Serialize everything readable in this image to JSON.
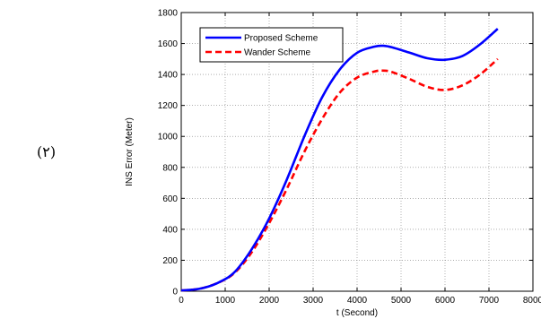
{
  "figure_label": "(٢)",
  "chart_data": {
    "type": "line",
    "xlabel": "t (Second)",
    "ylabel": "INS Error (Meter)",
    "xlim": [
      0,
      8000
    ],
    "ylim": [
      0,
      1800
    ],
    "xticks": [
      0,
      1000,
      2000,
      3000,
      4000,
      5000,
      6000,
      7000,
      8000
    ],
    "yticks": [
      0,
      200,
      400,
      600,
      800,
      1000,
      1200,
      1400,
      1600,
      1800
    ],
    "xtick_labels": [
      "0",
      "1000",
      "2000",
      "3000",
      "4000",
      "5000",
      "6000",
      "7000",
      "8000"
    ],
    "ytick_labels": [
      "0",
      "200",
      "400",
      "600",
      "800",
      "1000",
      "1200",
      "1400",
      "1600",
      "1800"
    ],
    "grid": true,
    "legend_position": "top-left",
    "series": [
      {
        "name": "Proposed Scheme",
        "color": "#0000ff",
        "dash": "solid",
        "x": [
          0,
          400,
          800,
          1200,
          1600,
          2000,
          2400,
          2800,
          3200,
          3600,
          4000,
          4400,
          4600,
          4800,
          5200,
          5600,
          6000,
          6400,
          6800,
          7200
        ],
        "y": [
          5,
          15,
          50,
          120,
          270,
          470,
          720,
          1000,
          1250,
          1430,
          1540,
          1580,
          1585,
          1575,
          1540,
          1505,
          1495,
          1520,
          1595,
          1695
        ]
      },
      {
        "name": "Wander Scheme",
        "color": "#ff0000",
        "dash": "dashed",
        "x": [
          0,
          400,
          800,
          1200,
          1600,
          2000,
          2400,
          2800,
          3200,
          3600,
          4000,
          4400,
          4600,
          4800,
          5200,
          5600,
          6000,
          6400,
          6800,
          7200
        ],
        "y": [
          5,
          15,
          50,
          115,
          250,
          440,
          660,
          900,
          1110,
          1280,
          1380,
          1420,
          1425,
          1415,
          1370,
          1320,
          1300,
          1330,
          1400,
          1500
        ]
      }
    ]
  }
}
